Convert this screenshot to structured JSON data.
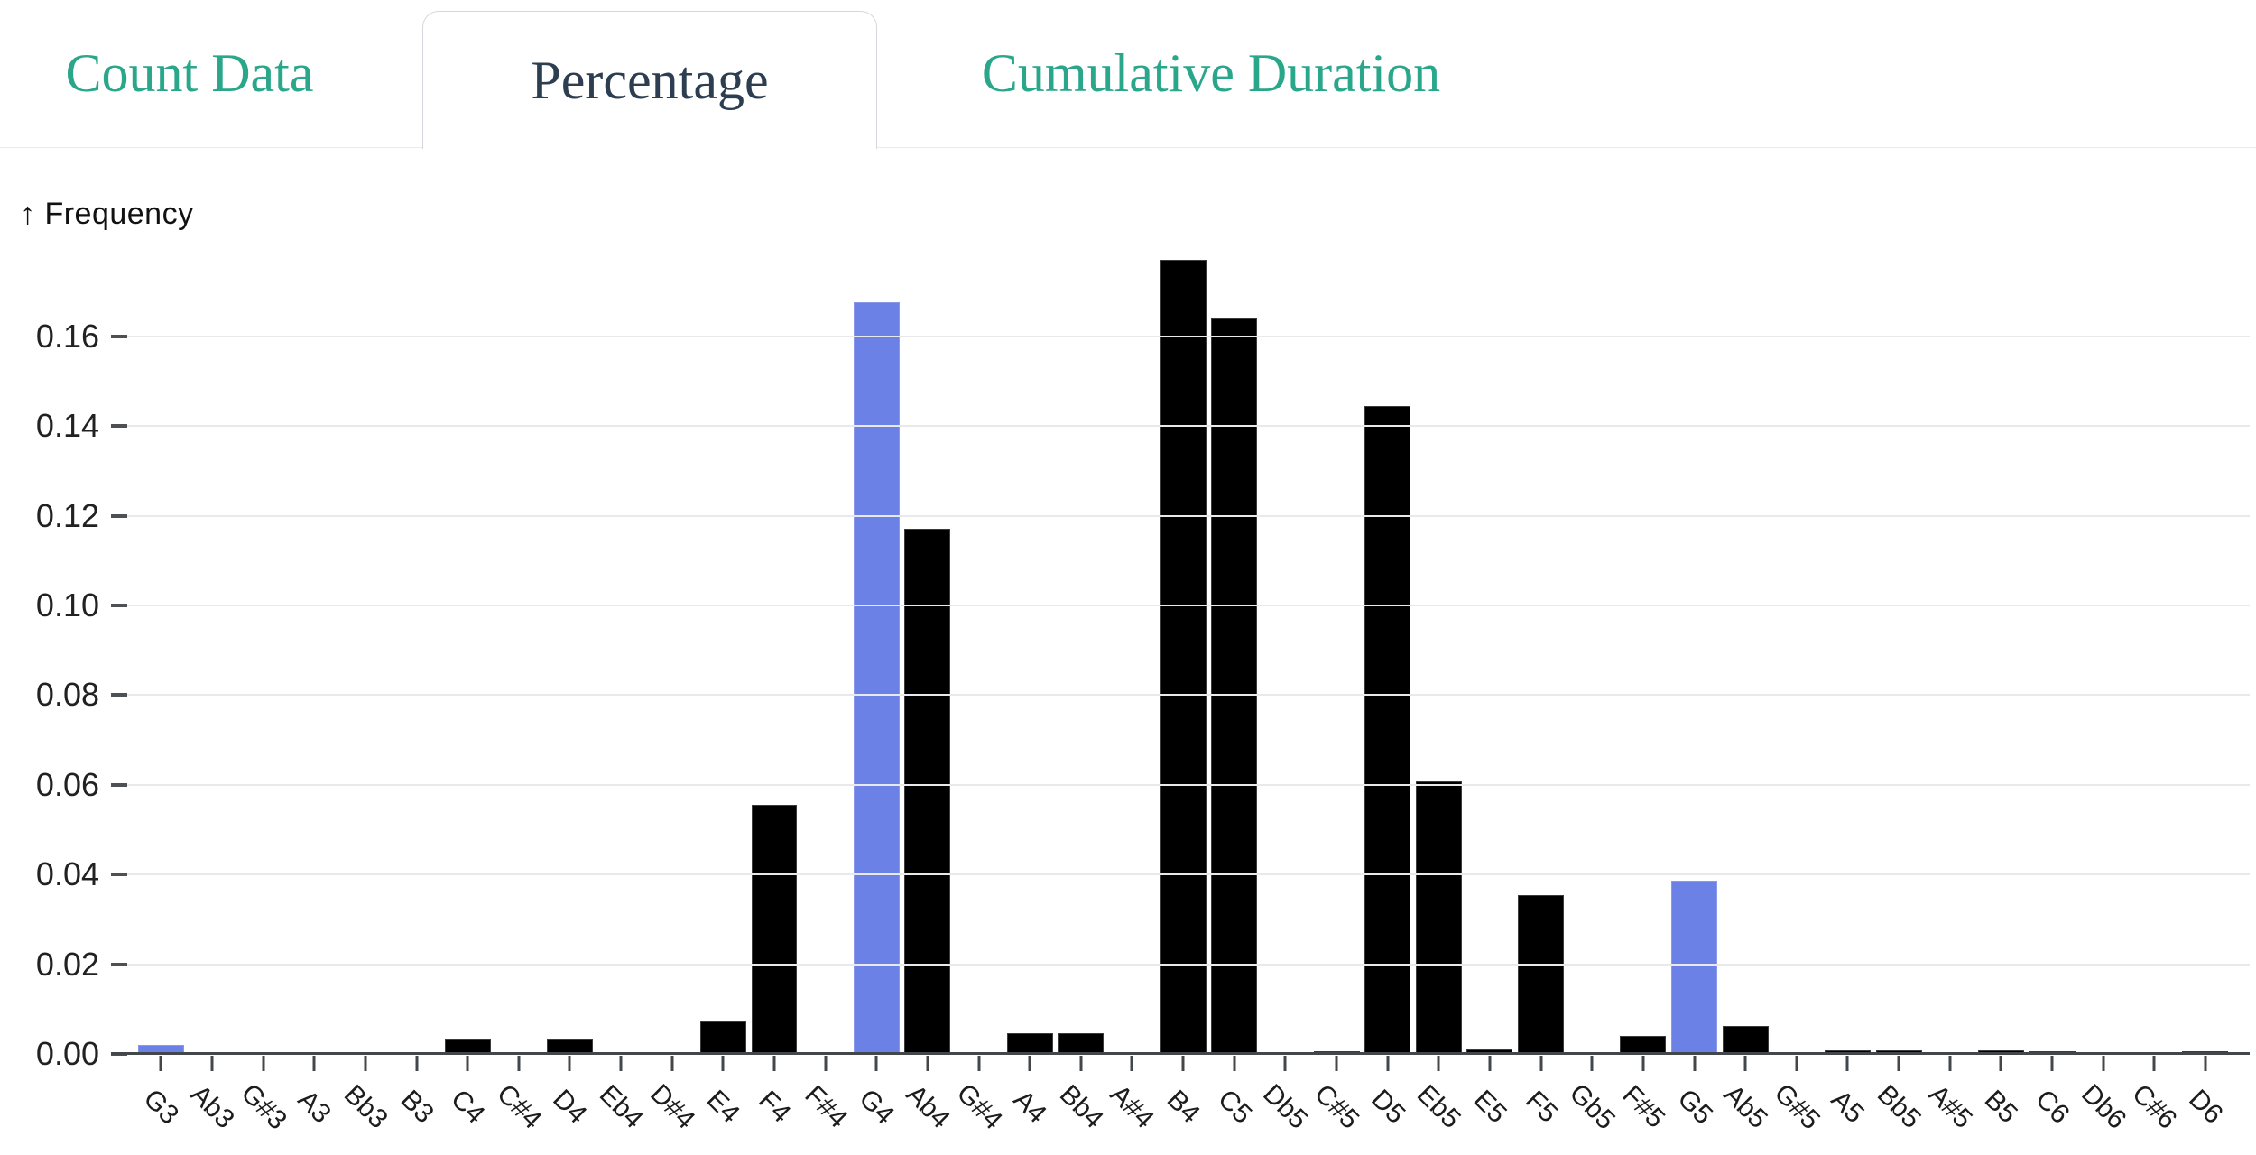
{
  "tabs": [
    {
      "label": "Count Data",
      "active": false
    },
    {
      "label": "Percentage",
      "active": true
    },
    {
      "label": "Cumulative Duration",
      "active": false
    }
  ],
  "chart": {
    "y_axis_label": "↑ Frequency"
  },
  "colors": {
    "tab_inactive_text": "#2aa78a",
    "tab_active_text": "#2d3e50",
    "tab_border": "#d4d8dd",
    "bar": "#000000",
    "highlight_bar": "#6b81e6",
    "gridline": "#e9e9e9",
    "axis_line": "#43474a",
    "tick_text": "#212121"
  },
  "chart_data": {
    "type": "bar",
    "title": "",
    "xlabel": "",
    "ylabel": "Frequency",
    "grid": true,
    "ylim": [
      0,
      0.1787
    ],
    "y_ticks": [
      0,
      0.02,
      0.04,
      0.06,
      0.08,
      0.1,
      0.12,
      0.14,
      0.16
    ],
    "categories": [
      "G3",
      "Ab3",
      "G#3",
      "A3",
      "Bb3",
      "B3",
      "C4",
      "C#4",
      "D4",
      "Eb4",
      "D#4",
      "E4",
      "F4",
      "F#4",
      "G4",
      "Ab4",
      "G#4",
      "A4",
      "Bb4",
      "A#4",
      "B4",
      "C5",
      "Db5",
      "C#5",
      "D5",
      "Eb5",
      "E5",
      "F5",
      "Gb5",
      "F#5",
      "G5",
      "Ab5",
      "G#5",
      "A5",
      "Bb5",
      "A#5",
      "B5",
      "C6",
      "Db6",
      "C#6",
      "D6"
    ],
    "values": [
      0.002,
      0,
      0,
      0,
      0,
      0,
      0.0032,
      0,
      0.0032,
      0,
      0,
      0.0072,
      0.0555,
      0,
      0.1677,
      0.1172,
      0,
      0.0047,
      0.0046,
      0,
      0.177,
      0.1643,
      0,
      0.0005,
      0.1444,
      0.0607,
      0.001,
      0.0354,
      0,
      0.004,
      0.0386,
      0.0063,
      0,
      0.0008,
      0.0008,
      0,
      0.0008,
      0.0006,
      0,
      0,
      0.0006
    ],
    "highlighted_categories": [
      "G3",
      "G4",
      "G5"
    ],
    "highlight_color": "#6b81e6",
    "bar_color": "#000000",
    "legend": null
  }
}
